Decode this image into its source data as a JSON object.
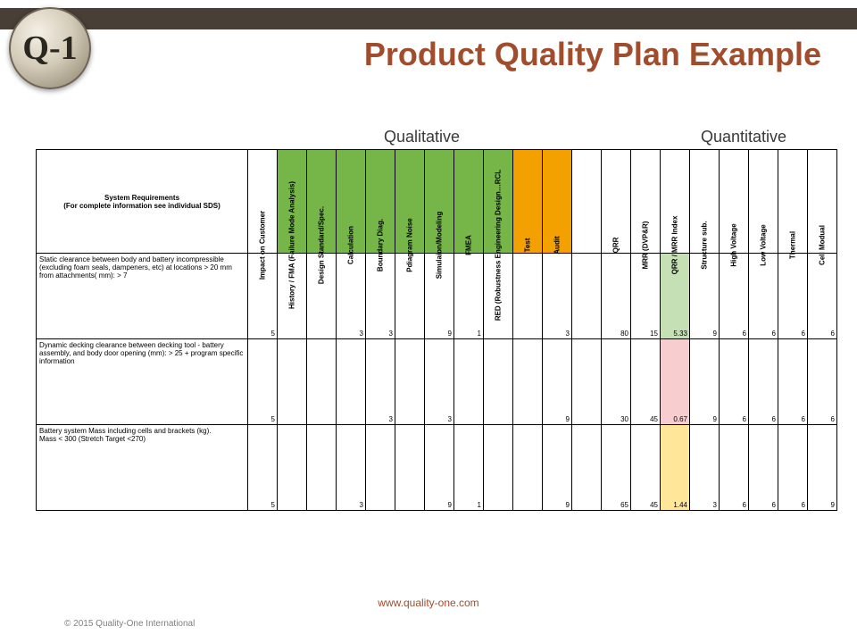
{
  "logo_text": "Q-1",
  "title": "Product Quality Plan Example",
  "sections": {
    "qualitative": "Qualitative",
    "quantitative": "Quantitative"
  },
  "colors": {
    "top_bar": "#483f36",
    "title": "#a04d2e",
    "header_green": "#76b648",
    "header_orange": "#f2a100",
    "cell_lgreen": "#c5e0b4",
    "cell_lpink": "#f8cdd0",
    "cell_lyellow": "#ffe699",
    "border": "#000000",
    "background": "#ffffff"
  },
  "typography": {
    "title_fontsize": 36,
    "section_fontsize": 18,
    "header_fontsize": 8,
    "cell_fontsize": 8
  },
  "table": {
    "req_header": "System Requirements\n(For complete information see individual SDS)",
    "columns": [
      {
        "label": "Impact on Customer",
        "bg": null
      },
      {
        "label": "History / FMA (Failure Mode Analysis)",
        "bg": "green"
      },
      {
        "label": "Design Standard/Spec.",
        "bg": "green"
      },
      {
        "label": "Calculation",
        "bg": "green"
      },
      {
        "label": "Boundary Diag.",
        "bg": "green"
      },
      {
        "label": "Pdiagram Noise",
        "bg": "green"
      },
      {
        "label": "Simulaion/Modeling",
        "bg": "green"
      },
      {
        "label": "FMEA",
        "bg": "green"
      },
      {
        "label": "RED (Robustness Engineering Design…RCL",
        "bg": "green"
      },
      {
        "label": "Test",
        "bg": "orange"
      },
      {
        "label": "Audit",
        "bg": "orange"
      },
      {
        "label": "",
        "bg": null
      },
      {
        "label": "QRR",
        "bg": null
      },
      {
        "label": "MRR (DVP&R)",
        "bg": null
      },
      {
        "label": "QRR / MRR Index",
        "bg": null
      },
      {
        "label": "Structure sub.",
        "bg": null
      },
      {
        "label": "High Voltage",
        "bg": null
      },
      {
        "label": "Low Voltage",
        "bg": null
      },
      {
        "label": "Thermal",
        "bg": null
      },
      {
        "label": "Cell Modual",
        "bg": null
      }
    ],
    "rows": [
      {
        "req": "Static clearance between body and battery incompressible (excluding foam seals, dampeners, etc) at locations  > 20 mm from attachments( mm): > 7",
        "cells": [
          "5",
          "",
          "",
          "3",
          "3",
          "",
          "9",
          "1",
          "",
          "",
          "3",
          "",
          "80",
          "15",
          "5.33",
          "9",
          "6",
          "6",
          "6",
          "6"
        ],
        "highlights": {
          "14": "lgreen"
        }
      },
      {
        "req": "Dynamic decking clearance between decking tool - battery assembly, and body door opening (mm): > 25 + program specific information",
        "cells": [
          "5",
          "",
          "",
          "",
          "3",
          "",
          "3",
          "",
          "",
          "",
          "9",
          "",
          "30",
          "45",
          "0.67",
          "9",
          "6",
          "6",
          "6",
          "6"
        ],
        "highlights": {
          "14": "lpink"
        }
      },
      {
        "req": "Battery system Mass including cells and brackets (kg).\n Mass < 300 (Stretch Target <270)",
        "cells": [
          "5",
          "",
          "",
          "3",
          "",
          "",
          "9",
          "1",
          "",
          "",
          "9",
          "",
          "65",
          "45",
          "1.44",
          "3",
          "6",
          "6",
          "6",
          "9"
        ],
        "highlights": {
          "14": "lyellow"
        }
      }
    ]
  },
  "footer": {
    "url": "www.quality-one.com",
    "copyright": "© 2015 Quality-One International"
  }
}
